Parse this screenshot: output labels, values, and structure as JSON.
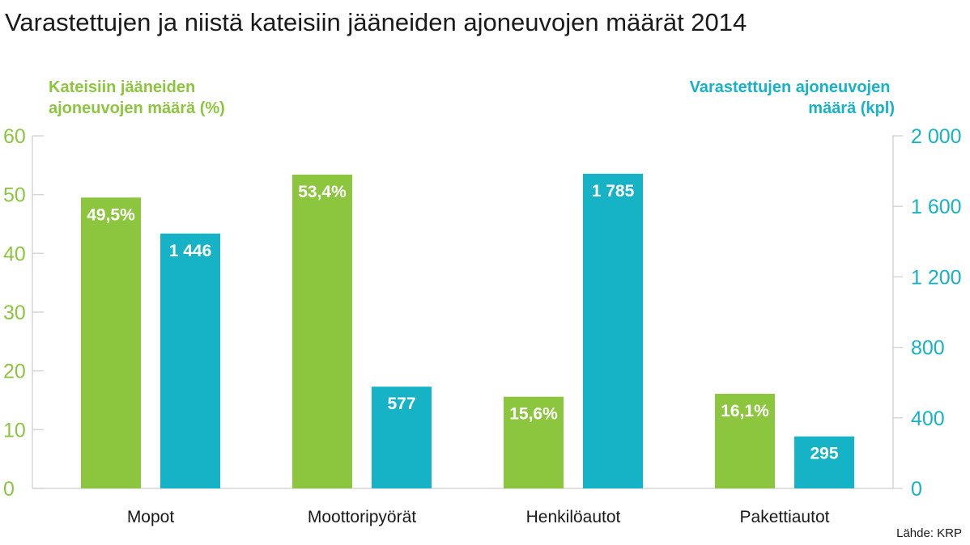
{
  "chart_data": {
    "type": "bar",
    "title": "Varastettujen ja niistä kateisiin jääneiden ajoneuvojen määrät 2014",
    "categories": [
      "Mopot",
      "Moottoripyörät",
      "Henkilöautot",
      "Pakettiautot"
    ],
    "y_left": {
      "label_lines": [
        "Kateisiin jääneiden",
        "ajoneuvojen määrä (%)"
      ],
      "lim": [
        0,
        60
      ],
      "ticks": [
        0,
        10,
        20,
        30,
        40,
        50,
        60
      ],
      "tick_labels": [
        "0",
        "10",
        "20",
        "30",
        "40",
        "50",
        "60"
      ],
      "color": "#8cc63e"
    },
    "y_right": {
      "label_lines": [
        "Varastettujen ajoneuvojen",
        "määrä (kpl)"
      ],
      "lim": [
        0,
        2000
      ],
      "ticks": [
        0,
        400,
        800,
        1200,
        1600,
        2000
      ],
      "tick_labels": [
        "0",
        "400",
        "800",
        "1 200",
        "1 600",
        "2 000"
      ],
      "color": "#16b3c6"
    },
    "series": [
      {
        "axis": "left",
        "color": "#8cc63e",
        "values": [
          49.5,
          53.4,
          15.6,
          16.1
        ],
        "labels": [
          "49,5%",
          "53,4%",
          "15,6%",
          "16,1%"
        ]
      },
      {
        "axis": "right",
        "color": "#16b3c6",
        "values": [
          1446,
          577,
          1785,
          295
        ],
        "labels": [
          "1 446",
          "577",
          "1 785",
          "295"
        ]
      }
    ],
    "grid": false,
    "source": "Lähde: KRP"
  }
}
